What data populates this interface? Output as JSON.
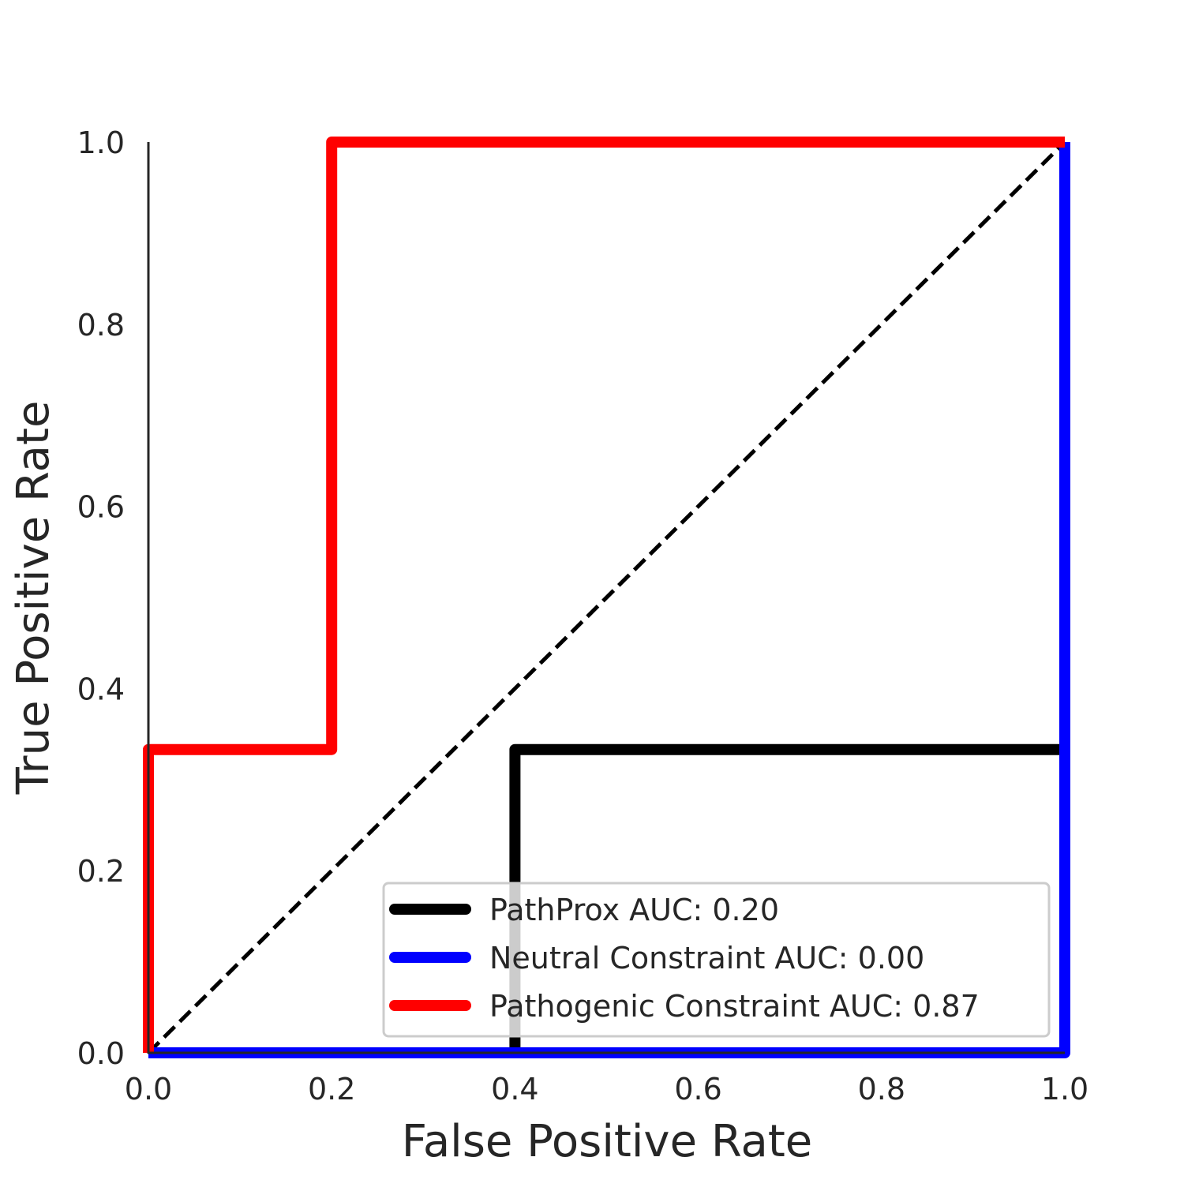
{
  "chart_data": {
    "type": "line",
    "title": "",
    "xlabel": "False Positive Rate",
    "ylabel": "True Positive Rate",
    "xlim": [
      0.0,
      1.0
    ],
    "ylim": [
      0.0,
      1.0
    ],
    "x_ticks": [
      "0.0",
      "0.2",
      "0.4",
      "0.6",
      "0.8",
      "1.0"
    ],
    "y_ticks": [
      "0.0",
      "0.2",
      "0.4",
      "0.6",
      "0.8",
      "1.0"
    ],
    "grid": false,
    "legend_position": "lower-right",
    "series": [
      {
        "name": "PathProx AUC:  0.20",
        "color": "#000000",
        "x": [
          0.0,
          0.4,
          0.4,
          1.0,
          1.0
        ],
        "y": [
          0.0,
          0.0,
          0.333,
          0.333,
          1.0
        ]
      },
      {
        "name": "Neutral Constraint AUC:  0.00",
        "color": "#0000ff",
        "x": [
          0.0,
          1.0,
          1.0
        ],
        "y": [
          0.0,
          0.0,
          1.0
        ]
      },
      {
        "name": "Pathogenic Constraint AUC:  0.87",
        "color": "#ff0000",
        "x": [
          0.0,
          0.0,
          0.2,
          0.2,
          1.0,
          1.0
        ],
        "y": [
          0.0,
          0.333,
          0.333,
          1.0,
          1.0,
          1.0
        ]
      }
    ],
    "reference_line": {
      "style": "dashed",
      "color": "#000000",
      "x": [
        0.0,
        1.0
      ],
      "y": [
        0.0,
        1.0
      ]
    }
  }
}
